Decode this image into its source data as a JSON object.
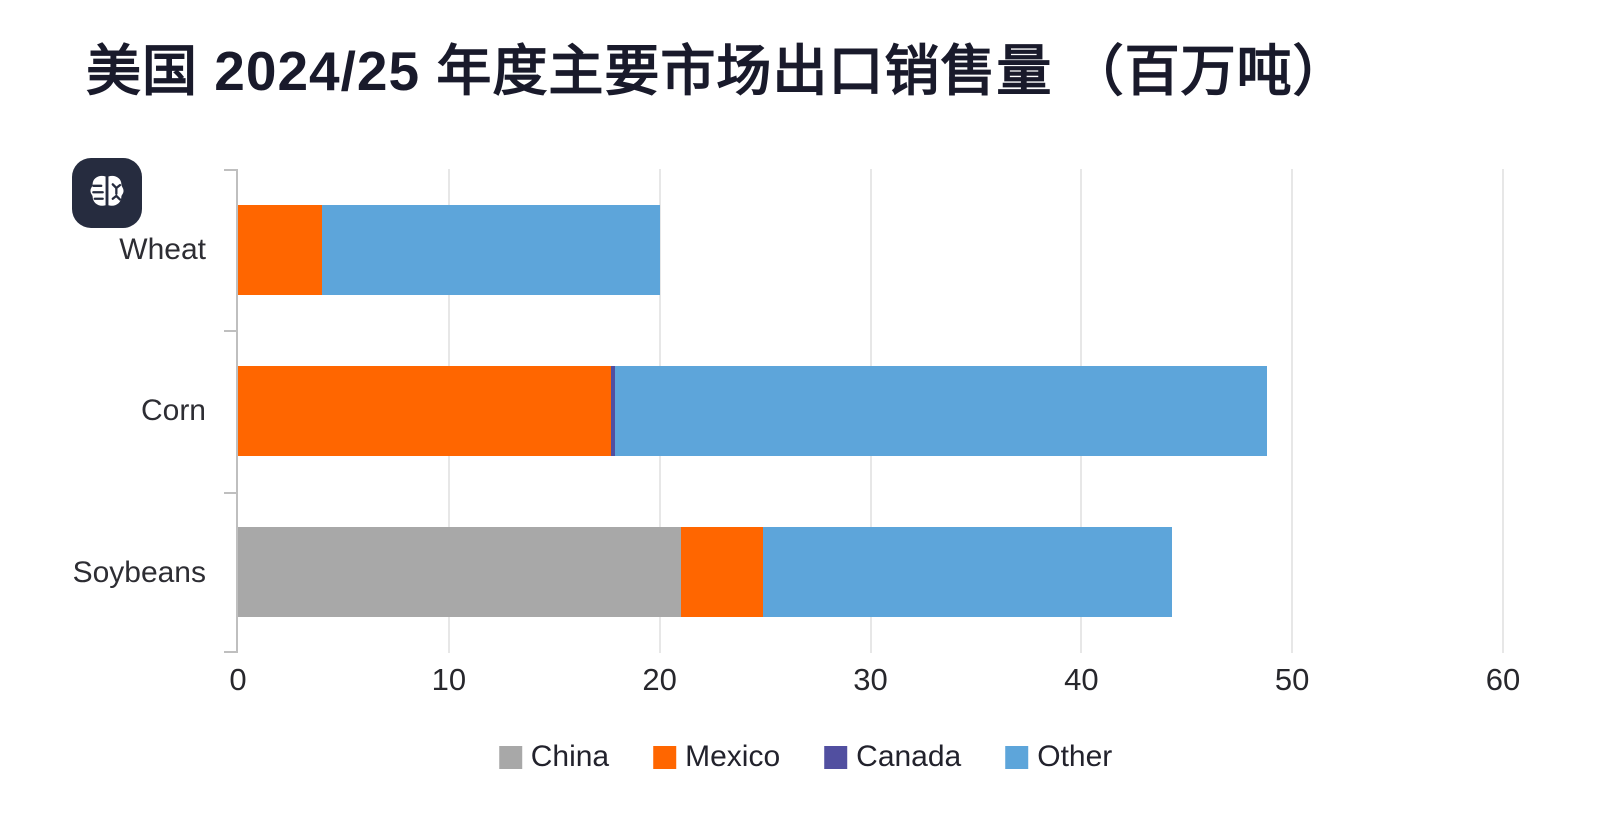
{
  "title": "美国 2024/25 年度主要市场出口销售量 （百万吨）",
  "badge": {
    "name": "brain-badge",
    "background": "#262c3f",
    "glyph_color": "#ffffff"
  },
  "colors": {
    "background": "#ffffff",
    "title_text": "#191a2b",
    "axis_text": "#2d2d33",
    "gridline": "#e7e7e7",
    "axis_line": "#bfbfbf"
  },
  "chart_data": {
    "type": "bar",
    "orientation": "horizontal",
    "stacked": true,
    "title": "美国 2024/25 年度主要市场出口销售量 （百万吨）",
    "categories": [
      "Wheat",
      "Corn",
      "Soybeans"
    ],
    "series": [
      {
        "name": "China",
        "color": "#a8a8a8",
        "values": [
          0,
          0,
          21.0
        ]
      },
      {
        "name": "Mexico",
        "color": "#ff6600",
        "values": [
          4.0,
          17.7,
          3.9
        ]
      },
      {
        "name": "Canada",
        "color": "#514fa0",
        "values": [
          0,
          0.2,
          0
        ]
      },
      {
        "name": "Other",
        "color": "#5da5da",
        "values": [
          16.0,
          30.9,
          19.4
        ]
      }
    ],
    "totals": [
      20.0,
      48.8,
      44.3
    ],
    "xlim": [
      0,
      60
    ],
    "xticks": [
      0,
      10,
      20,
      30,
      40,
      50,
      60
    ],
    "grid": "vertical-only",
    "legend_position": "bottom-center",
    "unit": "百万吨 (million tonnes)"
  }
}
